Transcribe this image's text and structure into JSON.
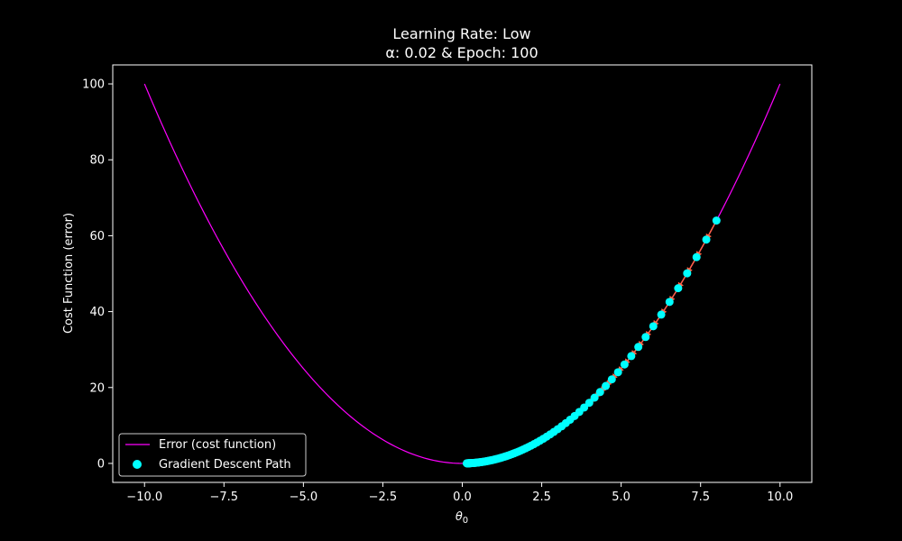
{
  "chart_data": {
    "type": "line",
    "title_line1": "Learning Rate: Low",
    "title_line2": "α: 0.02 & Epoch: 100",
    "xlabel": "θ",
    "xlabel_sub": "0",
    "ylabel": "Cost Function (error)",
    "xlim": [
      -11.0,
      11.0
    ],
    "ylim": [
      -5.0,
      105.0
    ],
    "x_ticks": [
      -10.0,
      -7.5,
      -5.0,
      -2.5,
      0.0,
      2.5,
      5.0,
      7.5,
      10.0
    ],
    "x_tick_labels": [
      "−10.0",
      "−7.5",
      "−5.0",
      "−2.5",
      "0.0",
      "2.5",
      "5.0",
      "7.5",
      "10.0"
    ],
    "y_ticks": [
      0,
      20,
      40,
      60,
      80,
      100
    ],
    "y_tick_labels": [
      "0",
      "20",
      "40",
      "60",
      "80",
      "100"
    ],
    "grid": false,
    "legend_position": "lower-left",
    "colors": {
      "background": "#000000",
      "curve": "#ff00ff",
      "points": "#00ffff",
      "arrows": "#ff6347",
      "text": "#ffffff",
      "axes": "#ffffff"
    },
    "series": [
      {
        "name": "Error (cost function)",
        "kind": "curve",
        "function": "y = x^2",
        "x_range": [
          -10.0,
          10.0
        ]
      },
      {
        "name": "Gradient Descent Path",
        "kind": "scatter",
        "start_x": 8.0,
        "decay_per_epoch": 0.96,
        "epochs": 100
      }
    ]
  }
}
